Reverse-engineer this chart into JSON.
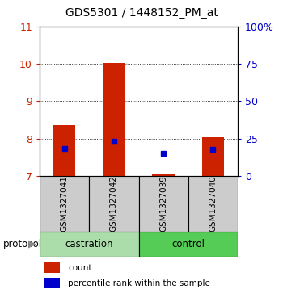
{
  "title": "GDS5301 / 1448152_PM_at",
  "samples": [
    "GSM1327041",
    "GSM1327042",
    "GSM1327039",
    "GSM1327040"
  ],
  "bar_values": [
    8.35,
    10.02,
    7.07,
    8.03
  ],
  "blue_dot_values": [
    7.72,
    7.92,
    7.6,
    7.7
  ],
  "bar_color": "#cc2200",
  "dot_color": "#0000cc",
  "ylim_left": [
    7,
    11
  ],
  "ylim_right": [
    0,
    100
  ],
  "yticks_left": [
    7,
    8,
    9,
    10,
    11
  ],
  "yticks_right": [
    0,
    25,
    50,
    75,
    100
  ],
  "ytick_labels_right": [
    "0",
    "25",
    "50",
    "75",
    "100%"
  ],
  "groups": [
    {
      "label": "castration",
      "color": "#aaddaa"
    },
    {
      "label": "control",
      "color": "#55cc55"
    }
  ],
  "protocol_label": "protocol",
  "legend_items": [
    {
      "label": "count",
      "color": "#cc2200"
    },
    {
      "label": "percentile rank within the sample",
      "color": "#0000cc"
    }
  ],
  "bar_width": 0.45,
  "bar_bottom": 7.0,
  "group_box_color": "#cccccc",
  "background_color": "#ffffff",
  "left_tick_color": "#cc2200",
  "right_tick_color": "#0000cc",
  "title_fontsize": 10,
  "grid_lines": [
    8,
    9,
    10
  ],
  "castration_color": "#aaddaa",
  "control_color": "#55cc55"
}
